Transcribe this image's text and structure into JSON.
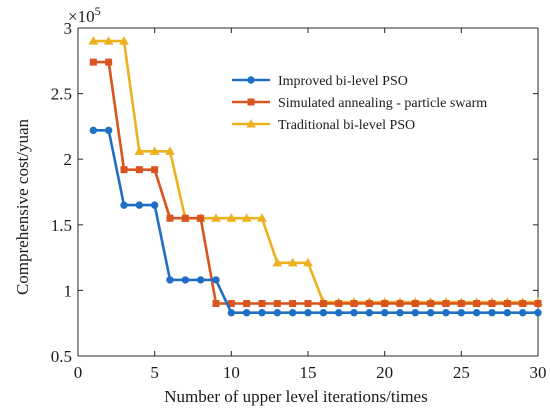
{
  "chart_data": {
    "type": "line",
    "xlabel": "Number of upper level iterations/times",
    "ylabel": "Comprehensive cost/yuan",
    "xlim": [
      0,
      30
    ],
    "ylim": [
      0.5,
      3
    ],
    "y_multiplier": "×10",
    "y_multiplier_exponent": "5",
    "xticks": [
      "0",
      "5",
      "10",
      "15",
      "20",
      "25",
      "30"
    ],
    "yticks": [
      "0.5",
      "1",
      "1.5",
      "2",
      "2.5",
      "3"
    ],
    "x": [
      1,
      2,
      3,
      4,
      5,
      6,
      7,
      8,
      9,
      10,
      11,
      12,
      13,
      14,
      15,
      16,
      17,
      18,
      19,
      20,
      21,
      22,
      23,
      24,
      25,
      26,
      27,
      28,
      29,
      30
    ],
    "legend_position": "top-right",
    "grid": false,
    "series": [
      {
        "name": "Improved bi-level PSO",
        "color": "#1f6fc5",
        "marker": "circle",
        "values": [
          2.22,
          2.22,
          1.65,
          1.65,
          1.65,
          1.08,
          1.08,
          1.08,
          1.08,
          0.83,
          0.83,
          0.83,
          0.83,
          0.83,
          0.83,
          0.83,
          0.83,
          0.83,
          0.83,
          0.83,
          0.83,
          0.83,
          0.83,
          0.83,
          0.83,
          0.83,
          0.83,
          0.83,
          0.83,
          0.83
        ]
      },
      {
        "name": "Simulated annealing - particle swarm",
        "color": "#d9541e",
        "marker": "square",
        "values": [
          2.74,
          2.74,
          1.92,
          1.92,
          1.92,
          1.55,
          1.55,
          1.55,
          0.9,
          0.9,
          0.9,
          0.9,
          0.9,
          0.9,
          0.9,
          0.9,
          0.9,
          0.9,
          0.9,
          0.9,
          0.9,
          0.9,
          0.9,
          0.9,
          0.9,
          0.9,
          0.9,
          0.9,
          0.9,
          0.9
        ]
      },
      {
        "name": "Traditional bi-level PSO",
        "color": "#edb120",
        "marker": "triangle",
        "values": [
          2.9,
          2.9,
          2.9,
          2.06,
          2.06,
          2.06,
          1.55,
          1.55,
          1.55,
          1.55,
          1.55,
          1.55,
          1.21,
          1.21,
          1.21,
          0.91,
          0.91,
          0.91,
          0.91,
          0.91,
          0.91,
          0.91,
          0.91,
          0.91,
          0.91,
          0.91,
          0.91,
          0.91,
          0.91,
          0.91
        ]
      }
    ]
  }
}
